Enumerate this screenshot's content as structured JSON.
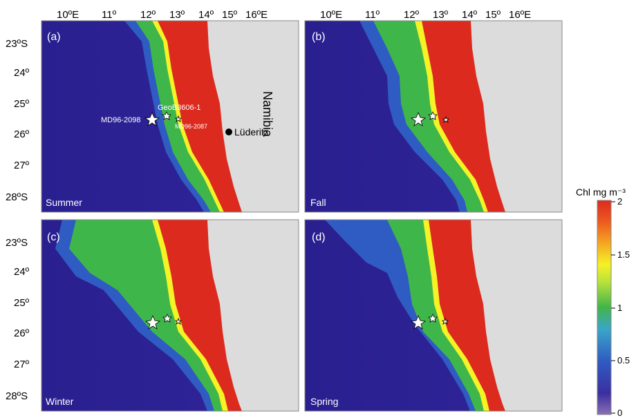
{
  "figure": {
    "top_axis": {
      "longitude_labels": [
        "10ºE",
        "11º",
        "12º",
        "13º",
        "14º",
        "15º",
        "16ºE"
      ]
    },
    "left_axis": {
      "latitude_labels": [
        "23ºS",
        "24º",
        "25º",
        "26º",
        "27º",
        "28ºS"
      ]
    },
    "panels": [
      {
        "id": "a",
        "label": "(a)",
        "season": "Summer"
      },
      {
        "id": "b",
        "label": "(b)",
        "season": "Fall"
      },
      {
        "id": "c",
        "label": "(c)",
        "season": "Winter"
      },
      {
        "id": "d",
        "label": "(d)",
        "season": "Spring"
      }
    ],
    "sites": [
      {
        "name": "MD96-2098",
        "lon": 12.6,
        "lat": -25.6
      },
      {
        "name": "GeoB3606-1",
        "lon": 13.0,
        "lat": -25.45
      },
      {
        "name": "MD96-2087",
        "lon": 13.35,
        "lat": -25.55
      }
    ],
    "country_label": "Namibia",
    "town": {
      "name": "Lüderitz",
      "lon": 15.0,
      "lat": -25.9
    },
    "colorbar": {
      "title": "Chl mg m⁻³",
      "ticks": [
        "0",
        "0.5",
        "1",
        "1.5",
        "2"
      ],
      "range": [
        0,
        2
      ]
    },
    "colors": {
      "land": "#dcdcdc",
      "ocean_deep": "#2a1f8f",
      "blue": "#2f5cc2",
      "green": "#3fb64a",
      "yellow": "#f5f226",
      "orange": "#f07a20",
      "red": "#dd2a1e"
    }
  }
}
